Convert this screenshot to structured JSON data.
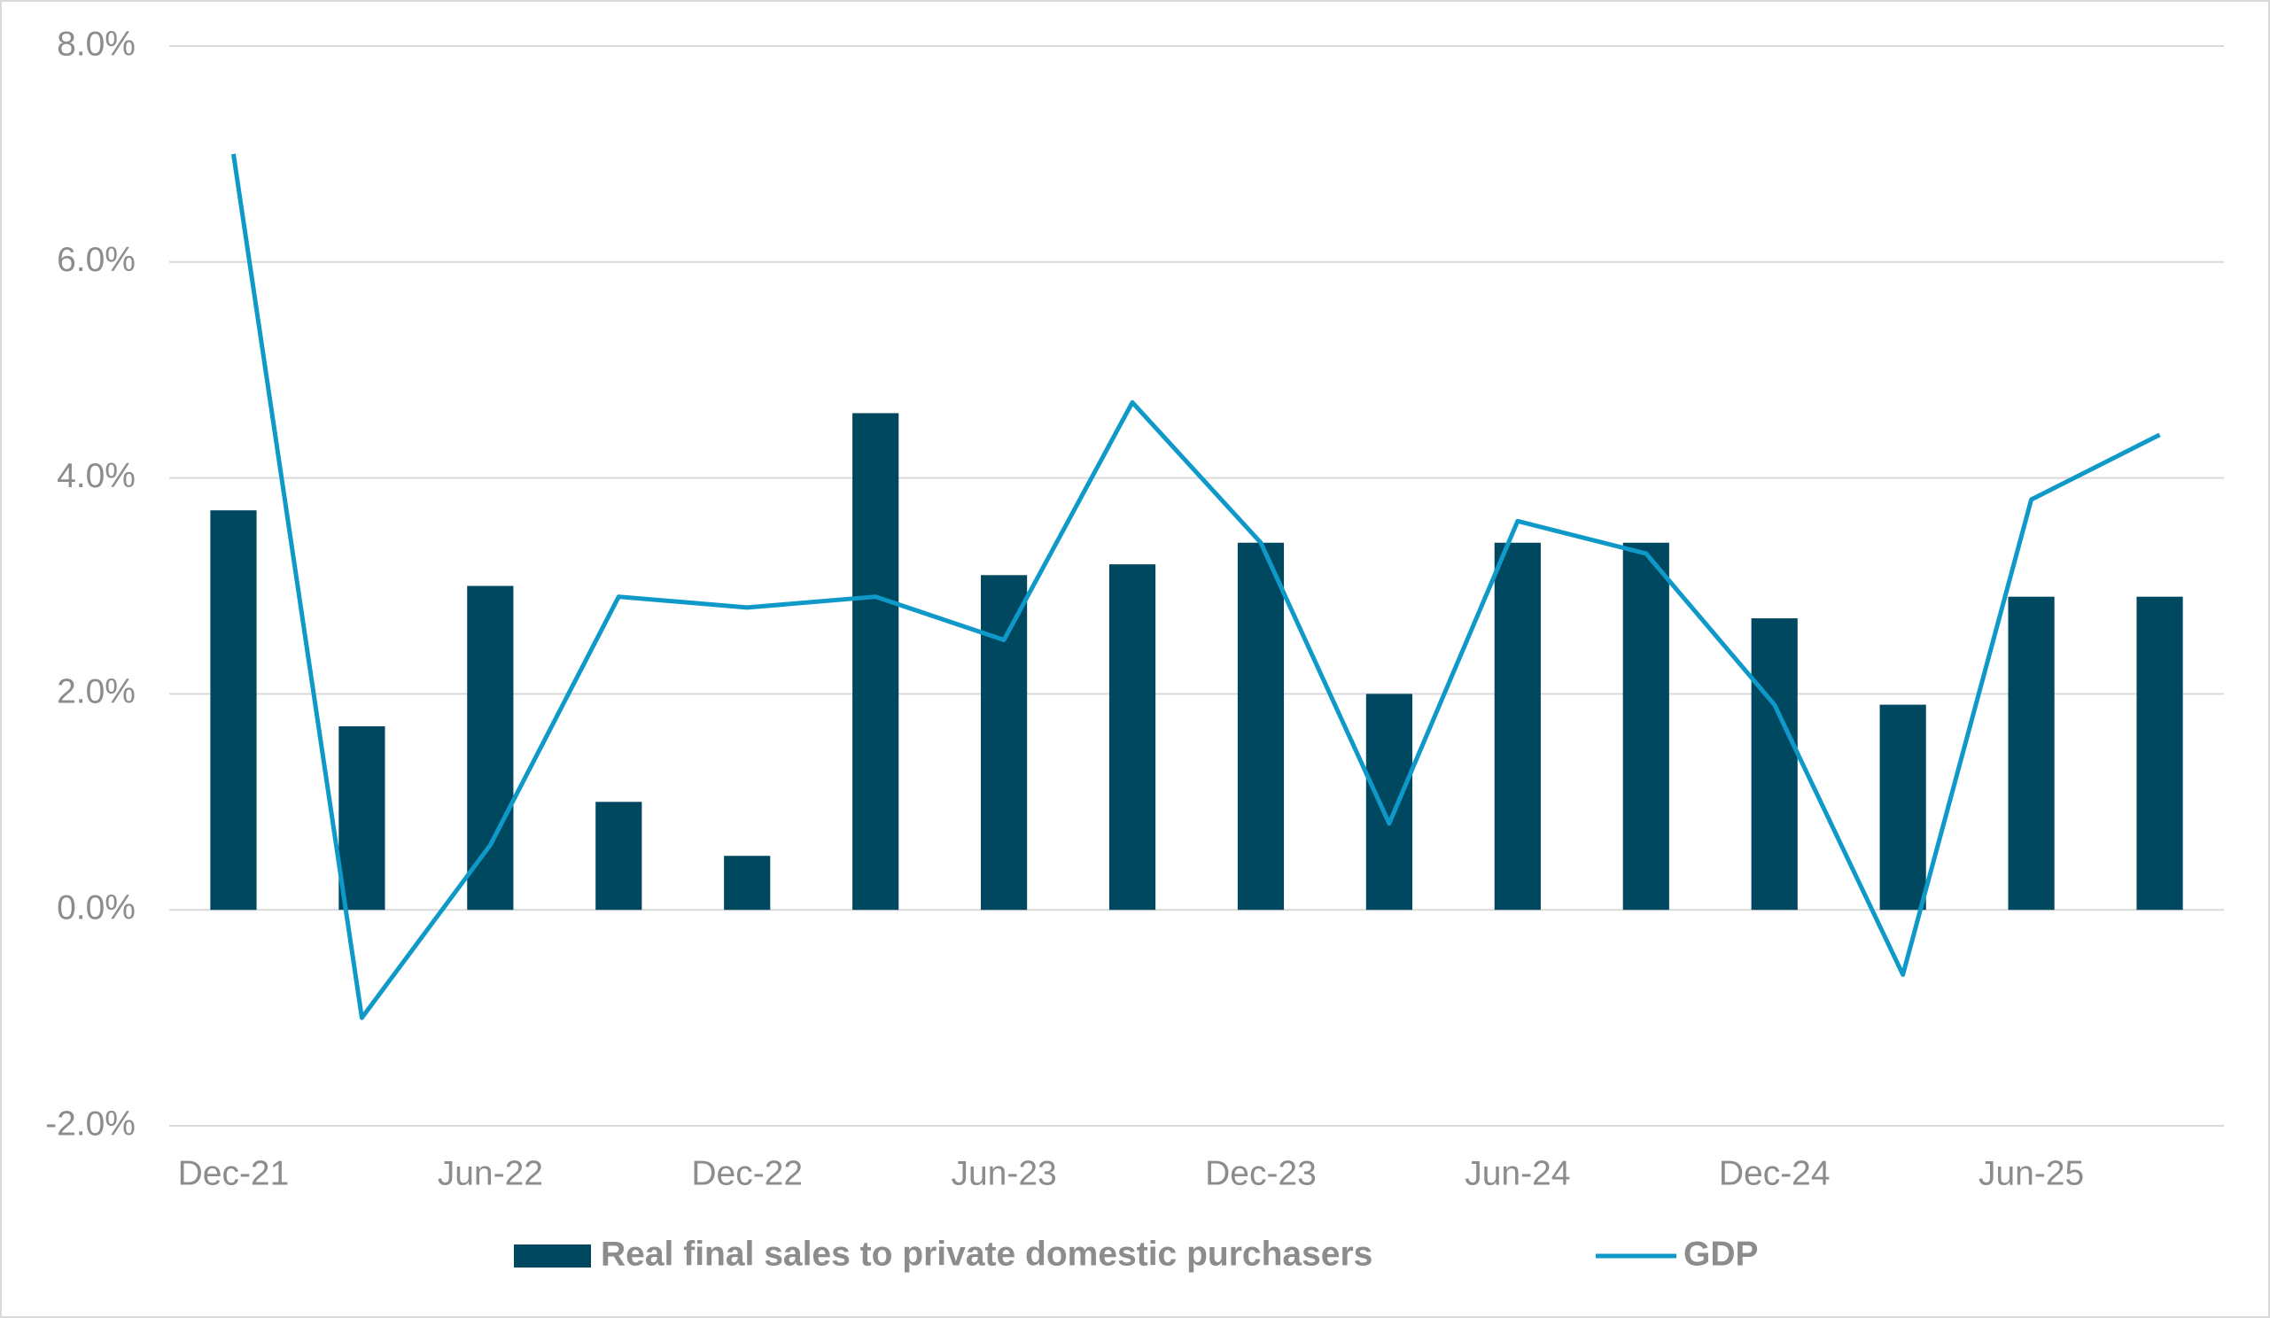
{
  "chart_data": {
    "type": "combo",
    "categories": [
      "Dec-21",
      null,
      "Jun-22",
      null,
      "Dec-22",
      null,
      "Jun-23",
      null,
      "Dec-23",
      null,
      "Jun-24",
      null,
      "Dec-24",
      null,
      "Jun-25",
      null
    ],
    "series": [
      {
        "name": "Real final sales to private domestic purchasers",
        "type": "bar",
        "color": "#00485f",
        "values": [
          3.7,
          1.7,
          3.0,
          1.0,
          0.5,
          4.6,
          3.1,
          3.2,
          3.4,
          2.0,
          3.4,
          3.4,
          2.7,
          1.9,
          2.9,
          2.9
        ]
      },
      {
        "name": "GDP",
        "type": "line",
        "color": "#0e99c8",
        "values": [
          7.0,
          -1.0,
          0.6,
          2.9,
          2.8,
          2.9,
          2.5,
          4.7,
          3.4,
          0.8,
          3.6,
          3.3,
          1.9,
          -0.6,
          3.8,
          4.4
        ]
      }
    ],
    "ylim": [
      -2,
      8
    ],
    "yticks": [
      {
        "value": -2,
        "label": "-2.0%"
      },
      {
        "value": 0,
        "label": "0.0%"
      },
      {
        "value": 2,
        "label": "2.0%"
      },
      {
        "value": 4,
        "label": "4.0%"
      },
      {
        "value": 6,
        "label": "6.0%"
      },
      {
        "value": 8,
        "label": "8.0%"
      }
    ],
    "grid": true,
    "legend": "bottom"
  }
}
